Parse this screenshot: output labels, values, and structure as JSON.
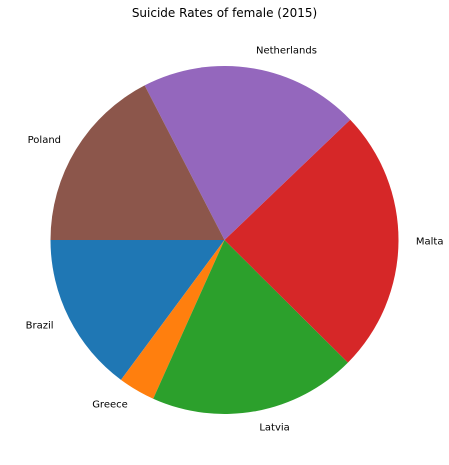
{
  "chart_data": {
    "type": "pie",
    "title": "Suicide Rates of female (2015)",
    "start_angle_deg": 180,
    "direction": "counterclockwise",
    "labels": [
      "Brazil",
      "Greece",
      "Latvia",
      "Malta",
      "Netherlands",
      "Poland"
    ],
    "values": [
      14.86,
      3.42,
      19.27,
      24.6,
      20.44,
      17.41
    ],
    "colors": [
      "#1f77b4",
      "#ff7f0e",
      "#2ca02c",
      "#d62728",
      "#9467bd",
      "#8c564b"
    ]
  }
}
